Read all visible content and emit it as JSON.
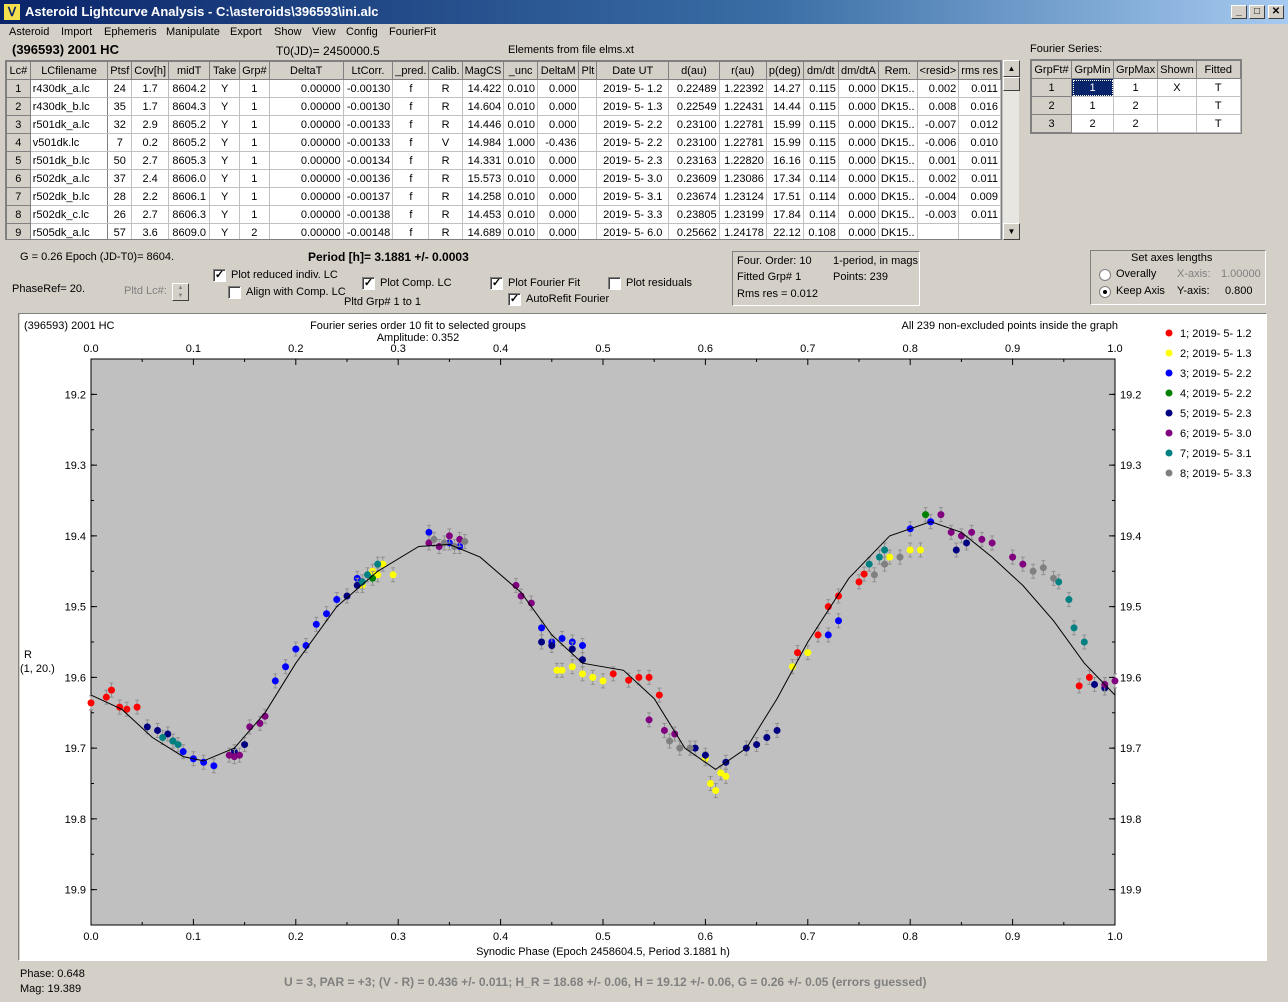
{
  "window": {
    "title": "Asteroid Lightcurve Analysis - C:\\asteroids\\396593\\ini.alc",
    "icon": "app-logo-icon",
    "minimize": "_",
    "maximize": "□",
    "close": "✕"
  },
  "menu": [
    "Asteroid",
    "Import",
    "Ephemeris",
    "Manipulate",
    "Export",
    "Show",
    "View",
    "Config",
    "FourierFit"
  ],
  "header": {
    "object": "(396593) 2001 HC",
    "t0": "T0(JD)= 2450000.5",
    "elements": "Elements from file elms.xt"
  },
  "lc_table": {
    "columns": [
      "Lc#",
      "LCfilename",
      "Ptsf",
      "Cov[h]",
      "midT",
      "Take",
      "Grp#",
      "DeltaT",
      "LtCorr.",
      "_pred.",
      "Calib.",
      "MagCS",
      "_unc",
      "DeltaM",
      "Plt",
      "Date UT",
      "d(au)",
      "r(au)",
      "p(deg)",
      "dm/dt",
      "dm/dtA",
      "Rem.",
      "<resid>",
      "rms res"
    ],
    "rows": [
      [
        "1",
        "r430dk_a.lc",
        "24",
        "1.7",
        "8604.2",
        "Y",
        "1",
        "0.00000",
        "-0.00130",
        "f",
        "R",
        "14.422",
        "0.010",
        "0.000",
        "",
        "2019- 5- 1.2",
        "0.22489",
        "1.22392",
        "14.27",
        "0.115",
        "0.000",
        "DK15..",
        "0.002",
        "0.011"
      ],
      [
        "2",
        "r430dk_b.lc",
        "35",
        "1.7",
        "8604.3",
        "Y",
        "1",
        "0.00000",
        "-0.00130",
        "f",
        "R",
        "14.604",
        "0.010",
        "0.000",
        "",
        "2019- 5- 1.3",
        "0.22549",
        "1.22431",
        "14.44",
        "0.115",
        "0.000",
        "DK15..",
        "0.008",
        "0.016"
      ],
      [
        "3",
        "r501dk_a.lc",
        "32",
        "2.9",
        "8605.2",
        "Y",
        "1",
        "0.00000",
        "-0.00133",
        "f",
        "R",
        "14.446",
        "0.010",
        "0.000",
        "",
        "2019- 5- 2.2",
        "0.23100",
        "1.22781",
        "15.99",
        "0.115",
        "0.000",
        "DK15..",
        "-0.007",
        "0.012"
      ],
      [
        "4",
        "v501dk.lc",
        "7",
        "0.2",
        "8605.2",
        "Y",
        "1",
        "0.00000",
        "-0.00133",
        "f",
        "V",
        "14.984",
        "1.000",
        "-0.436",
        "",
        "2019- 5- 2.2",
        "0.23100",
        "1.22781",
        "15.99",
        "0.115",
        "0.000",
        "DK15..",
        "-0.006",
        "0.010"
      ],
      [
        "5",
        "r501dk_b.lc",
        "50",
        "2.7",
        "8605.3",
        "Y",
        "1",
        "0.00000",
        "-0.00134",
        "f",
        "R",
        "14.331",
        "0.010",
        "0.000",
        "",
        "2019- 5- 2.3",
        "0.23163",
        "1.22820",
        "16.16",
        "0.115",
        "0.000",
        "DK15..",
        "0.001",
        "0.011"
      ],
      [
        "6",
        "r502dk_a.lc",
        "37",
        "2.4",
        "8606.0",
        "Y",
        "1",
        "0.00000",
        "-0.00136",
        "f",
        "R",
        "15.573",
        "0.010",
        "0.000",
        "",
        "2019- 5- 3.0",
        "0.23609",
        "1.23086",
        "17.34",
        "0.114",
        "0.000",
        "DK15..",
        "0.002",
        "0.011"
      ],
      [
        "7",
        "r502dk_b.lc",
        "28",
        "2.2",
        "8606.1",
        "Y",
        "1",
        "0.00000",
        "-0.00137",
        "f",
        "R",
        "14.258",
        "0.010",
        "0.000",
        "",
        "2019- 5- 3.1",
        "0.23674",
        "1.23124",
        "17.51",
        "0.114",
        "0.000",
        "DK15..",
        "-0.004",
        "0.009"
      ],
      [
        "8",
        "r502dk_c.lc",
        "26",
        "2.7",
        "8606.3",
        "Y",
        "1",
        "0.00000",
        "-0.00138",
        "f",
        "R",
        "14.453",
        "0.010",
        "0.000",
        "",
        "2019- 5- 3.3",
        "0.23805",
        "1.23199",
        "17.84",
        "0.114",
        "0.000",
        "DK15..",
        "-0.003",
        "0.011"
      ],
      [
        "9",
        "r505dk_a.lc",
        "57",
        "3.6",
        "8609.0",
        "Y",
        "2",
        "0.00000",
        "-0.00148",
        "f",
        "R",
        "14.689",
        "0.010",
        "0.000",
        "",
        "2019- 5- 6.0",
        "0.25662",
        "1.24178",
        "22.12",
        "0.108",
        "0.000",
        "DK15..",
        "",
        ""
      ]
    ]
  },
  "scroll": {
    "up": "▲",
    "down": "▼"
  },
  "fourier_series": {
    "label": "Fourier Series:",
    "columns": [
      "GrpFt#",
      "GrpMin",
      "GrpMax",
      "Shown",
      "Fitted"
    ],
    "rows": [
      [
        "1",
        "1",
        "1",
        "X",
        "T"
      ],
      [
        "2",
        "1",
        "2",
        "",
        "T"
      ],
      [
        "3",
        "2",
        "2",
        "",
        "T"
      ]
    ]
  },
  "controls": {
    "g_epoch": "G = 0.26    Epoch (JD-T0)= 8604.",
    "period": "Period [h]= 3.1881 +/- 0.0003",
    "phase_ref": "PhaseRef= 20.",
    "pltd_lc": "Pltd Lc#:",
    "plot_reduced": "Plot reduced indiv. LC",
    "align_comp": "Align with Comp. LC",
    "plot_comp": "Plot Comp. LC",
    "pltd_grp": "Pltd Grp#  1    to    1",
    "plot_fourier": "Plot Fourier Fit",
    "autorefit": "AutoRefit Fourier",
    "plot_residuals": "Plot residuals",
    "check_mark": "✓"
  },
  "fit_info": {
    "order": "Four. Order: 10",
    "fitted": "Fitted Grp# 1",
    "rms": "Rms res     = 0.012",
    "mode": "1-period, in mags",
    "points": "Points: 239"
  },
  "axes_box": {
    "title": "Set axes lengths",
    "overally": "Overally",
    "keep": "Keep Axis",
    "xaxis_label": "X-axis:",
    "xaxis_value": "1.00000",
    "yaxis_label": "Y-axis:",
    "yaxis_value": "0.800"
  },
  "plot": {
    "object": "(396593) 2001 HC",
    "fit_title": "Fourier series order 10 fit to selected groups",
    "amplitude": "Amplitude: 0.352",
    "points_note": "All 239 non-excluded points inside the graph",
    "ylabel": "R",
    "ylabel2": "(1, 20.)",
    "xlabel": "Synodic Phase (Epoch 2458604.5, Period 3.1881 h)"
  },
  "status": {
    "phase": "Phase:  0.648",
    "mag": "Mag:    19.389",
    "summary": "U = 3, PAR = +3; (V - R) = 0.436 +/- 0.011; H_R = 18.68 +/- 0.06, H = 19.12 +/- 0.06, G = 0.26 +/- 0.05 (errors guessed)"
  },
  "chart_data": {
    "type": "scatter",
    "xlim": [
      0,
      1
    ],
    "ylim": [
      19.95,
      19.15
    ],
    "y_inverted": true,
    "xticks": [
      "0.0",
      "0.1",
      "0.2",
      "0.3",
      "0.4",
      "0.5",
      "0.6",
      "0.7",
      "0.8",
      "0.9",
      "1.0"
    ],
    "yticks": [
      "19.2",
      "19.3",
      "19.4",
      "19.5",
      "19.6",
      "19.7",
      "19.8",
      "19.9"
    ],
    "legend_position": "right",
    "fit_curve": {
      "x": [
        0.0,
        0.03,
        0.06,
        0.09,
        0.11,
        0.14,
        0.17,
        0.2,
        0.24,
        0.28,
        0.32,
        0.35,
        0.38,
        0.42,
        0.45,
        0.48,
        0.52,
        0.55,
        0.58,
        0.61,
        0.64,
        0.67,
        0.7,
        0.74,
        0.78,
        0.82,
        0.85,
        0.88,
        0.91,
        0.94,
        0.97,
        1.0
      ],
      "y": [
        19.625,
        19.645,
        19.685,
        19.712,
        19.718,
        19.7,
        19.65,
        19.58,
        19.5,
        19.45,
        19.415,
        19.412,
        19.43,
        19.48,
        19.54,
        19.58,
        19.59,
        19.63,
        19.7,
        19.73,
        19.7,
        19.63,
        19.55,
        19.46,
        19.4,
        19.38,
        19.395,
        19.43,
        19.47,
        19.52,
        19.58,
        19.625
      ]
    },
    "series": [
      {
        "name": "1; 2019- 5- 1.2",
        "color": "#ff0000",
        "x": [
          0.0,
          0.015,
          0.02,
          0.028,
          0.035,
          0.045,
          0.51,
          0.525,
          0.535,
          0.545,
          0.555,
          0.69,
          0.71,
          0.72,
          0.73,
          0.75,
          0.755,
          0.965,
          0.975
        ],
        "y": [
          19.636,
          19.628,
          19.618,
          19.642,
          19.645,
          19.642,
          19.595,
          19.604,
          19.6,
          19.6,
          19.625,
          19.565,
          19.54,
          19.5,
          19.485,
          19.465,
          19.454,
          19.612,
          19.6
        ]
      },
      {
        "name": "2; 2019- 5- 1.3",
        "color": "#ffff00",
        "x": [
          0.265,
          0.275,
          0.28,
          0.285,
          0.295,
          0.455,
          0.46,
          0.47,
          0.48,
          0.49,
          0.5,
          0.6,
          0.605,
          0.61,
          0.615,
          0.62,
          0.685,
          0.7,
          0.78,
          0.8,
          0.81
        ],
        "y": [
          19.47,
          19.45,
          19.455,
          19.44,
          19.455,
          19.59,
          19.59,
          19.585,
          19.595,
          19.6,
          19.605,
          19.715,
          19.75,
          19.76,
          19.735,
          19.74,
          19.585,
          19.565,
          19.43,
          19.42,
          19.42
        ]
      },
      {
        "name": "3; 2019- 5- 2.2",
        "color": "#0000ff",
        "x": [
          0.09,
          0.1,
          0.11,
          0.12,
          0.18,
          0.19,
          0.2,
          0.21,
          0.22,
          0.23,
          0.24,
          0.26,
          0.33,
          0.35,
          0.36,
          0.44,
          0.45,
          0.46,
          0.47,
          0.48,
          0.72,
          0.73,
          0.8,
          0.82
        ],
        "y": [
          19.705,
          19.715,
          19.72,
          19.725,
          19.605,
          19.585,
          19.56,
          19.555,
          19.525,
          19.51,
          19.49,
          19.46,
          19.395,
          19.41,
          19.415,
          19.53,
          19.55,
          19.545,
          19.55,
          19.555,
          19.54,
          19.52,
          19.39,
          19.38
        ]
      },
      {
        "name": "4; 2019- 5- 2.2",
        "color": "#008000",
        "x": [
          0.275,
          0.815
        ],
        "y": [
          19.46,
          19.37
        ]
      },
      {
        "name": "5; 2019- 5- 2.3",
        "color": "#000080",
        "x": [
          0.055,
          0.065,
          0.075,
          0.08,
          0.14,
          0.15,
          0.25,
          0.26,
          0.44,
          0.45,
          0.47,
          0.48,
          0.59,
          0.6,
          0.62,
          0.64,
          0.65,
          0.66,
          0.67,
          0.845,
          0.855,
          0.98,
          0.99
        ],
        "y": [
          19.67,
          19.675,
          19.68,
          19.69,
          19.705,
          19.695,
          19.485,
          19.47,
          19.55,
          19.555,
          19.56,
          19.575,
          19.7,
          19.71,
          19.72,
          19.7,
          19.695,
          19.685,
          19.675,
          19.42,
          19.41,
          19.61,
          19.615
        ]
      },
      {
        "name": "6; 2019- 5- 3.0",
        "color": "#800080",
        "x": [
          0.135,
          0.14,
          0.145,
          0.155,
          0.165,
          0.17,
          0.33,
          0.34,
          0.35,
          0.36,
          0.415,
          0.42,
          0.43,
          0.545,
          0.56,
          0.57,
          0.83,
          0.84,
          0.85,
          0.86,
          0.87,
          0.88,
          0.9,
          0.91,
          0.99,
          1.0
        ],
        "y": [
          19.71,
          19.712,
          19.71,
          19.67,
          19.665,
          19.655,
          19.41,
          19.415,
          19.4,
          19.405,
          19.47,
          19.485,
          19.495,
          19.66,
          19.675,
          19.68,
          19.37,
          19.395,
          19.4,
          19.395,
          19.405,
          19.41,
          19.43,
          19.44,
          19.61,
          19.605
        ]
      },
      {
        "name": "7; 2019- 5- 3.1",
        "color": "#008080",
        "x": [
          0.07,
          0.08,
          0.085,
          0.265,
          0.27,
          0.28,
          0.76,
          0.77,
          0.775,
          0.945,
          0.955,
          0.96,
          0.97
        ],
        "y": [
          19.685,
          19.69,
          19.695,
          19.465,
          19.455,
          19.44,
          19.44,
          19.43,
          19.42,
          19.465,
          19.49,
          19.53,
          19.55
        ]
      },
      {
        "name": "8; 2019- 5- 3.3",
        "color": "#808080",
        "x": [
          0.335,
          0.345,
          0.355,
          0.365,
          0.565,
          0.575,
          0.585,
          0.765,
          0.775,
          0.79,
          0.92,
          0.93,
          0.94
        ],
        "y": [
          19.405,
          19.41,
          19.415,
          19.408,
          19.69,
          19.7,
          19.7,
          19.455,
          19.44,
          19.43,
          19.45,
          19.445,
          19.46
        ]
      }
    ]
  }
}
